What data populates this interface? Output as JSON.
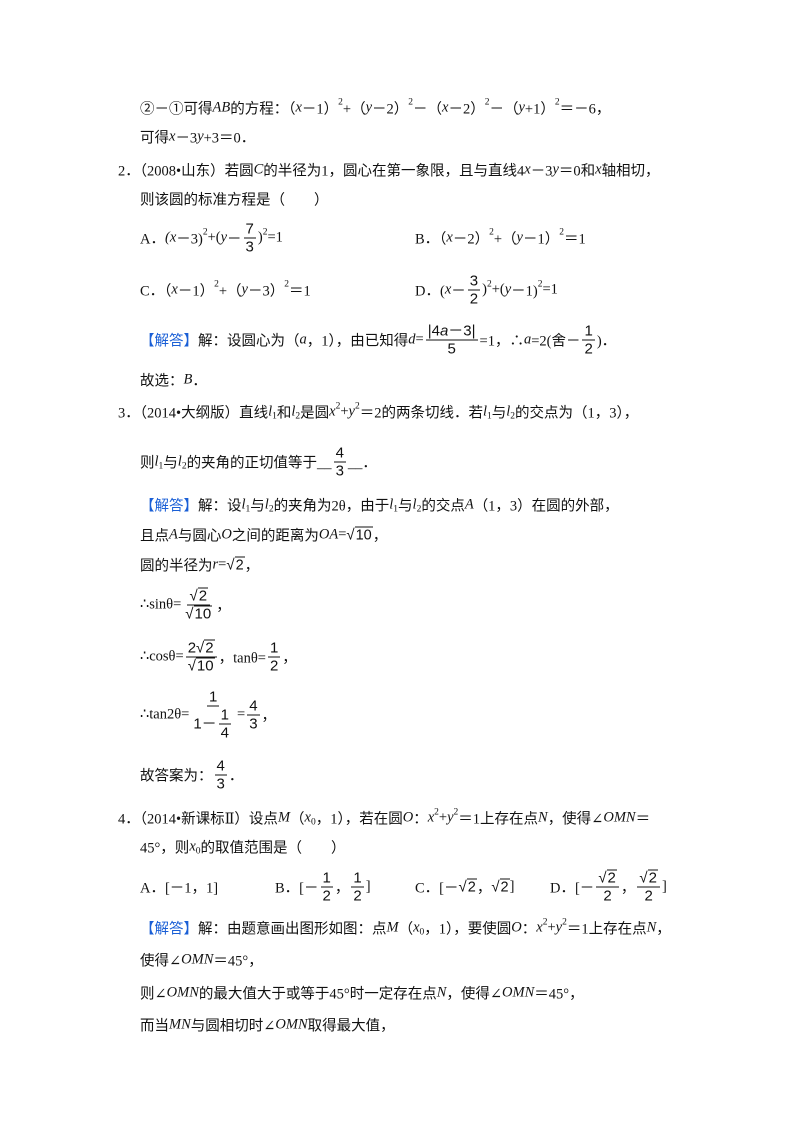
{
  "colors": {
    "answer_label": "#1a5fd6",
    "text": "#111111"
  },
  "lines": [
    {
      "cells": [
        [
          "②－①可得",
          {
            "i": "AB"
          },
          "的方程：（",
          {
            "i": "x"
          },
          "－1）",
          {
            "sup": "2"
          },
          "+（",
          {
            "i": "y"
          },
          "－2）",
          {
            "sup": "2"
          },
          "－（",
          {
            "i": "x"
          },
          "－2）",
          {
            "sup": "2"
          },
          "－（",
          {
            "i": "y"
          },
          "+1）",
          {
            "sup": "2"
          },
          "＝－6，"
        ]
      ]
    },
    {
      "cells": [
        [
          "可得",
          {
            "i": "x"
          },
          "－3",
          {
            "i": "y"
          },
          "+3＝0．"
        ]
      ]
    },
    {
      "cells": [
        [
          "2．（2008•山东）若圆",
          {
            "i": "C"
          },
          "的半径为1，圆心在第一象限，且与直线4",
          {
            "i": "x"
          },
          "－3",
          {
            "i": "y"
          },
          "＝0和",
          {
            "i": "x"
          },
          "轴相切，"
        ]
      ]
    },
    {
      "cells": [
        [
          "则该圆的标准方程是（　　）"
        ]
      ]
    },
    {
      "cells": [
        [
          "A．",
          {
            "i": "(x"
          },
          "－3)",
          {
            "sup": "2"
          },
          "+(",
          {
            "i": "y"
          },
          "－",
          {
            "f": [
              [
                "7"
              ],
              [
                "3"
              ]
            ]
          },
          ")",
          {
            "sup": "2"
          },
          "=1"
        ],
        [
          "B．（",
          {
            "i": "x"
          },
          "－2）",
          {
            "sup": "2"
          },
          "+（",
          {
            "i": "y"
          },
          "－1）",
          {
            "sup": "2"
          },
          "＝1"
        ]
      ]
    },
    {
      "cells": [
        [
          "C．（",
          {
            "i": "x"
          },
          "－1）",
          {
            "sup": "2"
          },
          "+（",
          {
            "i": "y"
          },
          "－3）",
          {
            "sup": "2"
          },
          "＝1"
        ],
        [
          "D．(",
          {
            "i": "x"
          },
          "－",
          {
            "f": [
              [
                "3"
              ],
              [
                "2"
              ]
            ]
          },
          ")",
          {
            "sup": "2"
          },
          "+(",
          {
            "i": "y"
          },
          "－1)",
          {
            "sup": "2"
          },
          "=1"
        ]
      ]
    },
    {
      "cells": [
        [
          {
            "lab": "【解答】"
          },
          "解：设圆心为（",
          {
            "i": "a"
          },
          "，1），由已知得",
          {
            "i": "d"
          },
          "=",
          {
            "f": [
              [
                "|4",
                {
                  "i": "a"
                },
                "－3|"
              ],
              [
                "5"
              ]
            ]
          },
          "=1，∴",
          {
            "i": "a"
          },
          "=2(舍－",
          {
            "f": [
              [
                "1"
              ],
              [
                "2"
              ]
            ]
          },
          ")．"
        ]
      ]
    },
    {
      "cells": [
        [
          "故选：",
          {
            "i": "B"
          },
          "．"
        ]
      ]
    },
    {
      "cells": [
        [
          "3．（2014•大纲版）直线",
          {
            "i": "l"
          },
          {
            "sub": "1"
          },
          "和",
          {
            "i": "l"
          },
          {
            "sub": "2"
          },
          "是圆",
          {
            "i": "x"
          },
          {
            "sup": "2"
          },
          "+",
          {
            "i": "y"
          },
          {
            "sup": "2"
          },
          "＝2的两条切线．若",
          {
            "i": "l"
          },
          {
            "sub": "1"
          },
          "与",
          {
            "i": "l"
          },
          {
            "sub": "2"
          },
          "的交点为（1，3），"
        ]
      ]
    },
    {
      "cells": [
        [
          "则",
          {
            "i": "l"
          },
          {
            "sub": "1"
          },
          "与",
          {
            "i": "l"
          },
          {
            "sub": "2"
          },
          "的夹角的正切值等于__",
          {
            "f": [
              [
                "4"
              ],
              [
                "3"
              ]
            ]
          },
          "__．"
        ]
      ]
    },
    {
      "cells": [
        [
          {
            "lab": "【解答】"
          },
          "解：设",
          {
            "i": "l"
          },
          {
            "sub": "1"
          },
          "与",
          {
            "i": "l"
          },
          {
            "sub": "2"
          },
          "的夹角为2θ，由于",
          {
            "i": "l"
          },
          {
            "sub": "1"
          },
          "与",
          {
            "i": "l"
          },
          {
            "sub": "2"
          },
          "的交点",
          {
            "i": "A"
          },
          "（1，3）在圆的外部，"
        ]
      ]
    },
    {
      "cells": [
        [
          "且点",
          {
            "i": "A"
          },
          "与圆心",
          {
            "i": "O"
          },
          "之间的距离为",
          {
            "i": "OA"
          },
          "=",
          {
            "sq": "10"
          },
          "，"
        ]
      ]
    },
    {
      "cells": [
        [
          "圆的半径为",
          {
            "i": "r"
          },
          "=",
          {
            "sq": "2"
          },
          "，"
        ]
      ]
    },
    {
      "cells": [
        [
          "∴sinθ=",
          {
            "f": [
              [
                {
                  "sq": "2"
                }
              ],
              [
                {
                  "sq": "10"
                }
              ]
            ]
          },
          "，"
        ]
      ]
    },
    {
      "cells": [
        [
          "∴cosθ=",
          {
            "f": [
              [
                "2",
                {
                  "sq": "2"
                }
              ],
              [
                {
                  "sq": "10"
                }
              ]
            ]
          },
          "，tanθ=",
          {
            "f": [
              [
                "1"
              ],
              [
                "2"
              ]
            ]
          },
          "，"
        ]
      ]
    },
    {
      "cells": [
        [
          "∴tan2θ=",
          {
            "f": [
              [
                "1"
              ],
              [
                "1－",
                {
                  "f": [
                    [
                      "1"
                    ],
                    [
                      "4"
                    ]
                  ]
                }
              ]
            ]
          },
          "=",
          {
            "f": [
              [
                "4"
              ],
              [
                "3"
              ]
            ]
          },
          "，"
        ]
      ]
    },
    {
      "cells": [
        [
          "故答案为：",
          {
            "f": [
              [
                "4"
              ],
              [
                "3"
              ]
            ]
          },
          "．"
        ]
      ]
    },
    {
      "cells": [
        [
          "4．（2014•新课标Ⅱ）设点",
          {
            "i": "M"
          },
          "（",
          {
            "i": "x"
          },
          {
            "sub": "0"
          },
          "，1），若在圆",
          {
            "i": "O"
          },
          "：",
          {
            "i": "x"
          },
          {
            "sup": "2"
          },
          "+",
          {
            "i": "y"
          },
          {
            "sup": "2"
          },
          "＝1上存在点",
          {
            "i": "N"
          },
          "，使得∠",
          {
            "i": "OMN"
          },
          "＝"
        ]
      ]
    },
    {
      "cells": [
        [
          "45°，则",
          {
            "i": "x"
          },
          {
            "sub": "0"
          },
          "的取值范围是（　　）"
        ]
      ]
    },
    {
      "cells": [
        [
          "A．[－1，1]"
        ],
        [
          "B．[－",
          {
            "f": [
              [
                "1"
              ],
              [
                "2"
              ]
            ]
          },
          "，",
          {
            "f": [
              [
                "1"
              ],
              [
                "2"
              ]
            ]
          },
          "]"
        ],
        [
          "C．[－",
          {
            "sq": "2"
          },
          "，",
          {
            "sq": "2"
          },
          "]"
        ],
        [
          "D．[－",
          {
            "f": [
              [
                {
                  "sq": "2"
                }
              ],
              [
                "2"
              ]
            ]
          },
          "，",
          {
            "f": [
              [
                {
                  "sq": "2"
                }
              ],
              [
                "2"
              ]
            ]
          },
          "]"
        ]
      ]
    },
    {
      "cells": [
        [
          {
            "lab": "【解答】"
          },
          "解：由题意画出图形如图：点",
          {
            "i": "M"
          },
          "（",
          {
            "i": "x"
          },
          {
            "sub": "0"
          },
          "，1），要使圆",
          {
            "i": "O"
          },
          "：",
          {
            "i": "x"
          },
          {
            "sup": "2"
          },
          "+",
          {
            "i": "y"
          },
          {
            "sup": "2"
          },
          "＝1上存在点",
          {
            "i": "N"
          },
          "，"
        ]
      ]
    },
    {
      "cells": [
        [
          "使得∠",
          {
            "i": "OMN"
          },
          "＝45°，"
        ]
      ]
    },
    {
      "cells": [
        [
          "则∠",
          {
            "i": "OMN"
          },
          "的最大值大于或等于45°时一定存在点",
          {
            "i": "N"
          },
          "，使得∠",
          {
            "i": "OMN"
          },
          "＝45°，"
        ]
      ]
    },
    {
      "cells": [
        [
          "而当",
          {
            "i": "MN"
          },
          "与圆相切时∠",
          {
            "i": "OMN"
          },
          "取得最大值，"
        ]
      ]
    }
  ]
}
